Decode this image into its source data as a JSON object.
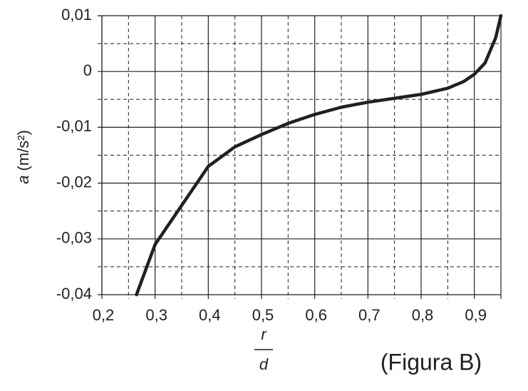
{
  "chart_data": {
    "type": "line",
    "y_label_symbol": "a",
    "y_label_unit": "(m/s²)",
    "x_label_numerator": "r",
    "x_label_denominator": "d",
    "annotation": "(Figura B)",
    "x": [
      0.265,
      0.3,
      0.35,
      0.4,
      0.45,
      0.5,
      0.55,
      0.6,
      0.65,
      0.7,
      0.75,
      0.8,
      0.85,
      0.88,
      0.9,
      0.92,
      0.94,
      0.95
    ],
    "series": [
      {
        "color": "#231f20",
        "values": [
          -0.04,
          -0.031,
          -0.024,
          -0.017,
          -0.0135,
          -0.0113,
          -0.0093,
          -0.0077,
          -0.0064,
          -0.0055,
          -0.0048,
          -0.0041,
          -0.003,
          -0.0018,
          -0.0005,
          0.0015,
          0.006,
          0.01
        ]
      }
    ],
    "xlim": [
      0.2,
      0.95
    ],
    "ylim": [
      -0.04,
      0.01
    ],
    "xticks": [
      {
        "value": 0.2,
        "label": "0,2"
      },
      {
        "value": 0.3,
        "label": "0,3"
      },
      {
        "value": 0.4,
        "label": "0,4"
      },
      {
        "value": 0.5,
        "label": "0,5"
      },
      {
        "value": 0.6,
        "label": "0,6"
      },
      {
        "value": 0.7,
        "label": "0,7"
      },
      {
        "value": 0.8,
        "label": "0,8"
      },
      {
        "value": 0.9,
        "label": "0,9"
      }
    ],
    "yticks": [
      {
        "value": -0.04,
        "label": "-0,04"
      },
      {
        "value": -0.03,
        "label": "-0,03"
      },
      {
        "value": -0.02,
        "label": "-0,02"
      },
      {
        "value": -0.01,
        "label": "-0,01"
      },
      0,
      {
        "value": 0.01,
        "label": "0,01"
      }
    ],
    "x_minor_ticks": [
      0.25,
      0.35,
      0.45,
      0.55,
      0.65,
      0.75,
      0.85
    ],
    "y_minor_ticks": [
      -0.035,
      -0.025,
      -0.015,
      -0.005,
      0.005
    ],
    "grid": true
  }
}
